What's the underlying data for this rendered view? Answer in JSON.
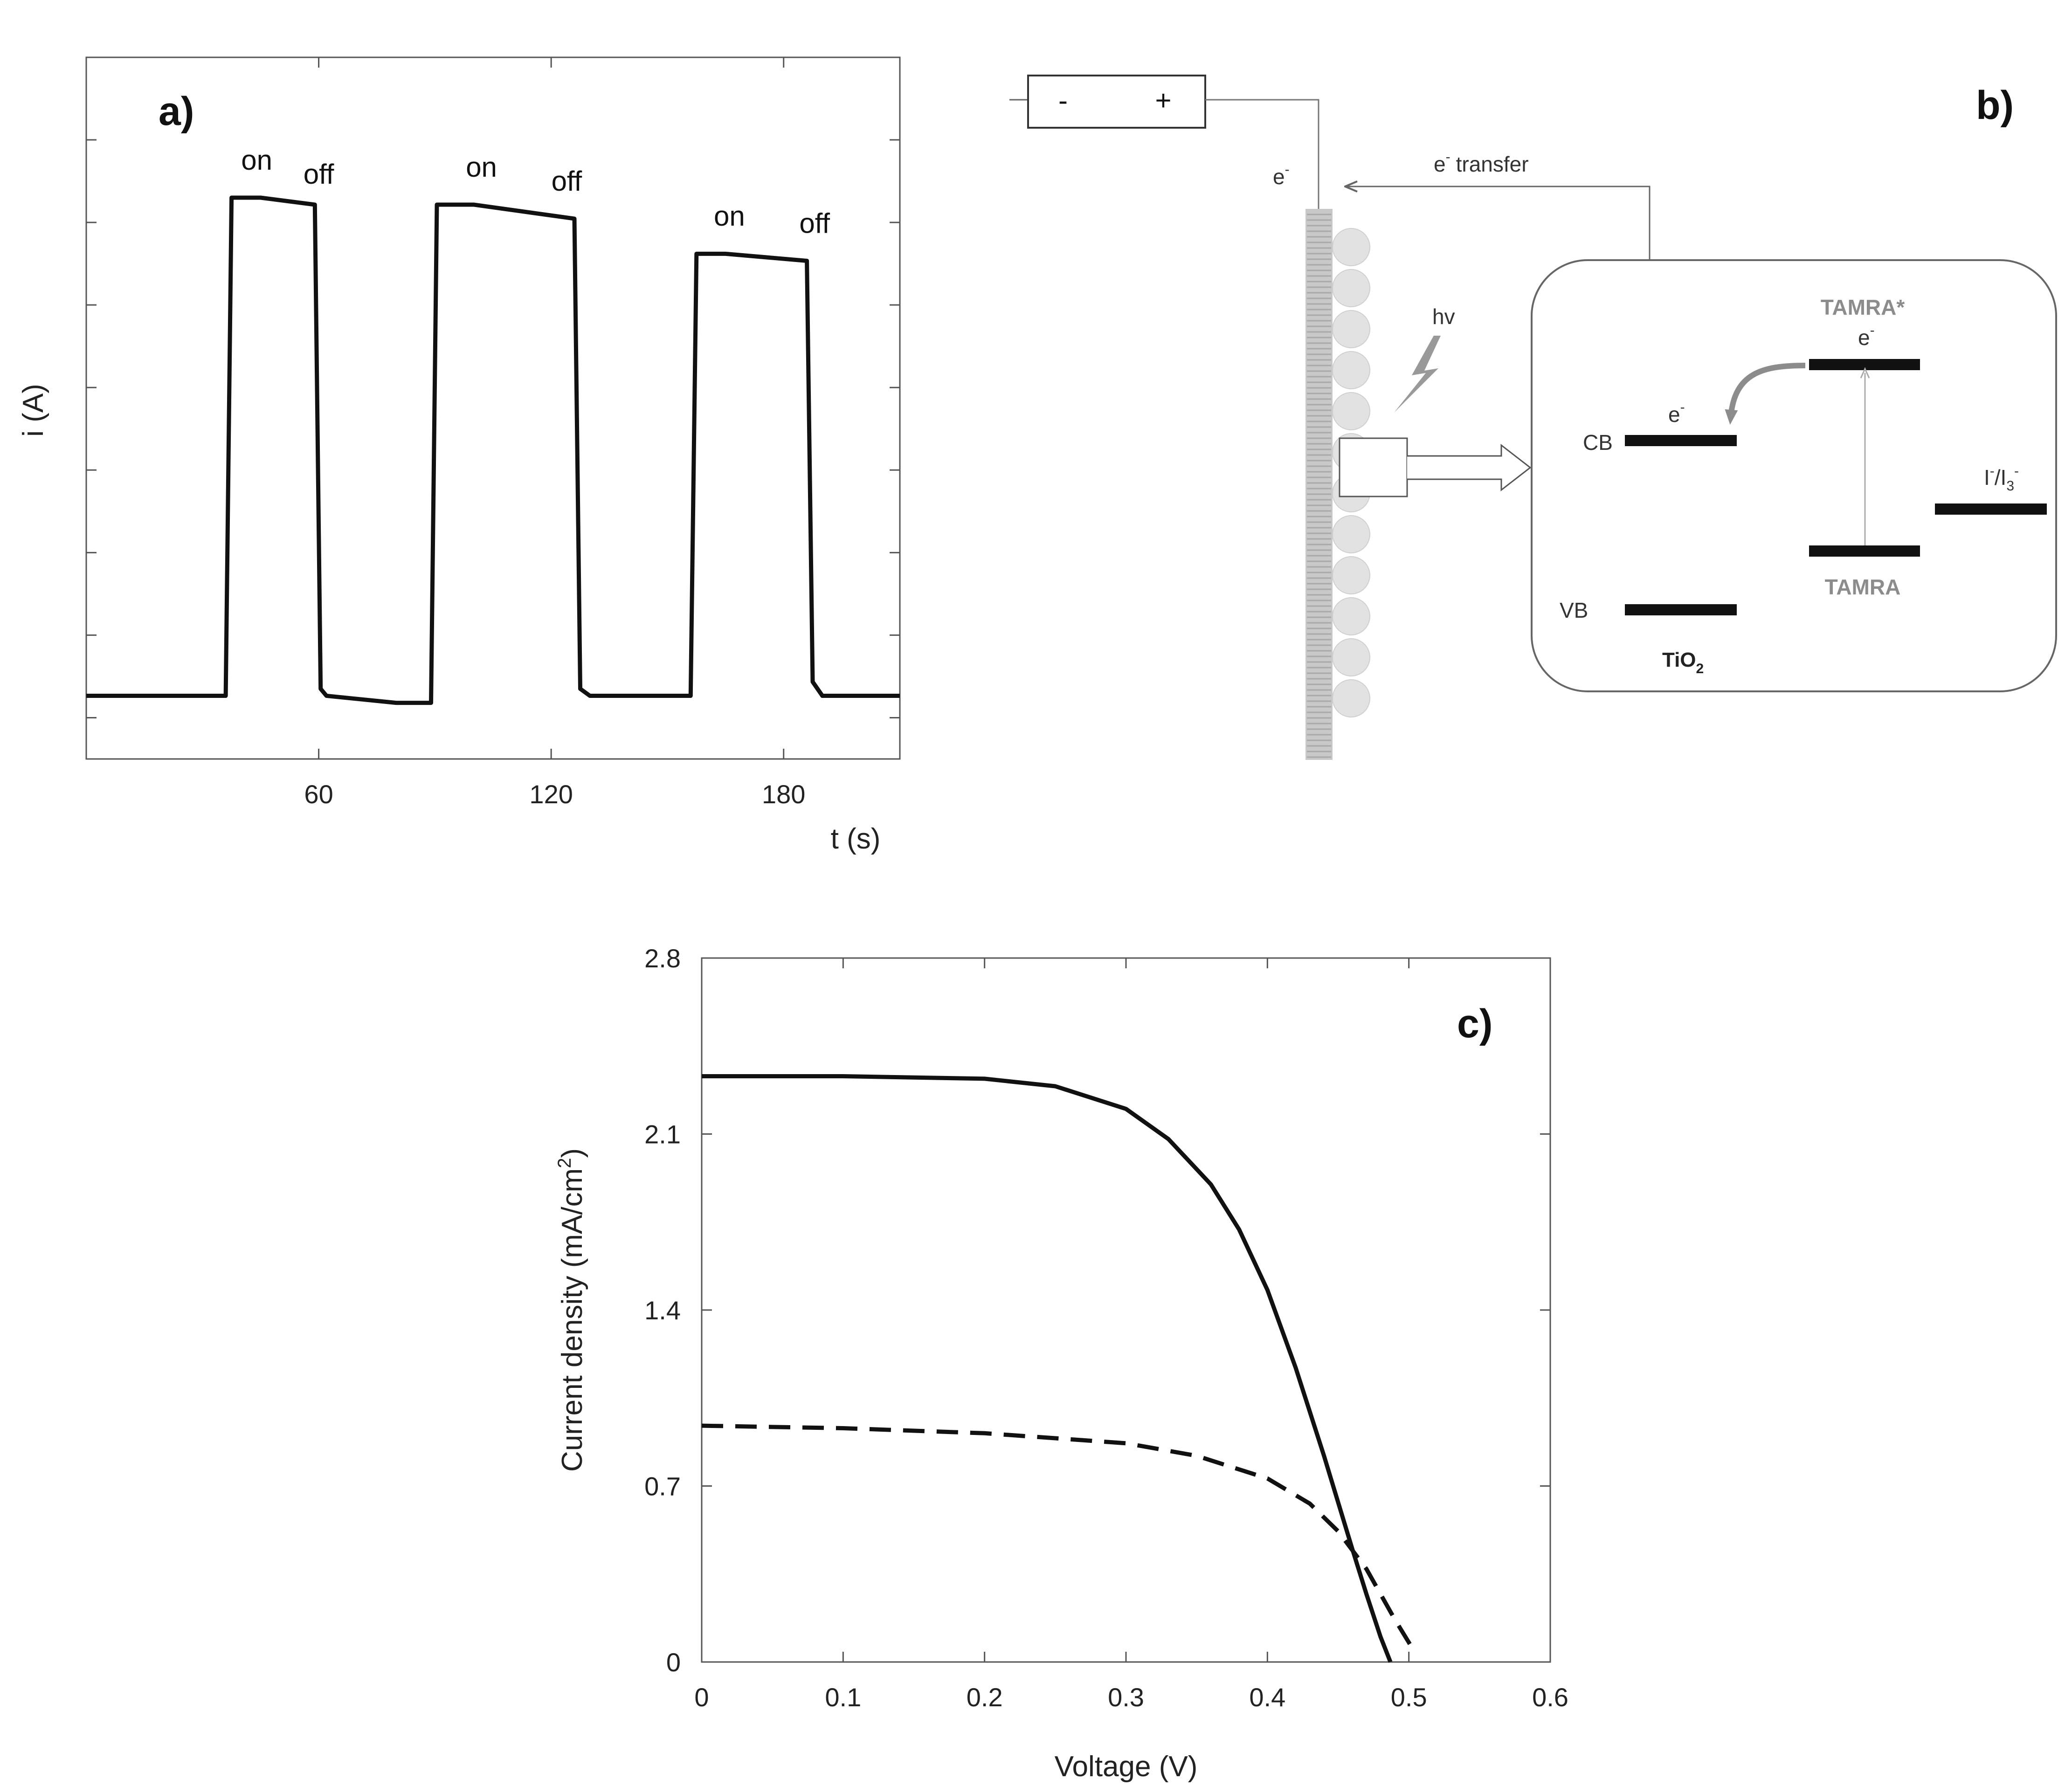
{
  "chart_data": [
    {
      "panel": "a)",
      "type": "line",
      "xlabel": "t (s)",
      "ylabel": "i (A)",
      "xlim": [
        0,
        210
      ],
      "ylim": [
        0,
        1
      ],
      "x_ticks": [
        60,
        120,
        180
      ],
      "annotations": [
        {
          "text": "on",
          "x": 44,
          "y": 0.84
        },
        {
          "text": "off",
          "x": 60,
          "y": 0.82
        },
        {
          "text": "on",
          "x": 102,
          "y": 0.83
        },
        {
          "text": "off",
          "x": 124,
          "y": 0.81
        },
        {
          "text": "on",
          "x": 166,
          "y": 0.76
        },
        {
          "text": "off",
          "x": 188,
          "y": 0.75
        }
      ],
      "series": [
        {
          "style": "solid",
          "x": [
            0,
            36,
            37.5,
            45,
            59,
            60.5,
            62,
            80,
            89,
            90.5,
            100,
            126,
            127.5,
            130,
            148,
            156,
            157.5,
            165,
            186,
            187.5,
            190,
            210
          ],
          "y": [
            0.09,
            0.09,
            0.8,
            0.8,
            0.79,
            0.1,
            0.09,
            0.08,
            0.08,
            0.79,
            0.79,
            0.77,
            0.1,
            0.09,
            0.09,
            0.09,
            0.72,
            0.72,
            0.71,
            0.11,
            0.09,
            0.09
          ]
        }
      ]
    },
    {
      "panel": "c)",
      "type": "line",
      "xlabel": "Voltage (V)",
      "ylabel_main": "Current density (mA/cm",
      "ylabel_sup": "2",
      "ylabel_close": ")",
      "xlim": [
        0,
        0.6
      ],
      "ylim": [
        0,
        2.8
      ],
      "x_ticks": [
        0,
        0.1,
        0.2,
        0.3,
        0.4,
        0.5,
        0.6
      ],
      "x_tick_labels": [
        "0",
        "0.1",
        "0.2",
        "0.3",
        "0.4",
        "0.5",
        "0.6"
      ],
      "y_ticks": [
        0,
        0.7,
        1.4,
        2.1,
        2.8
      ],
      "y_tick_labels": [
        "0",
        "0.7",
        "1.4",
        "2.1",
        "2.8"
      ],
      "series": [
        {
          "style": "solid",
          "x": [
            0,
            0.1,
            0.2,
            0.25,
            0.3,
            0.33,
            0.36,
            0.38,
            0.4,
            0.42,
            0.44,
            0.46,
            0.47,
            0.48,
            0.487
          ],
          "y": [
            2.33,
            2.33,
            2.32,
            2.29,
            2.2,
            2.08,
            1.9,
            1.72,
            1.48,
            1.17,
            0.82,
            0.45,
            0.27,
            0.1,
            0.0
          ]
        },
        {
          "style": "dashed",
          "x": [
            0,
            0.1,
            0.2,
            0.3,
            0.35,
            0.4,
            0.43,
            0.45,
            0.47,
            0.49,
            0.503
          ],
          "y": [
            0.94,
            0.93,
            0.91,
            0.87,
            0.82,
            0.73,
            0.63,
            0.52,
            0.37,
            0.17,
            0.05
          ]
        }
      ]
    }
  ],
  "diagram_b": {
    "panel": "b)",
    "battery_minus": "-",
    "battery_plus": "+",
    "electron_left": "e",
    "electron_sup": "-",
    "transfer_e": "e",
    "transfer_sup": "-",
    "transfer_text": "transfer",
    "hv": "hv",
    "cb": "CB",
    "vb": "VB",
    "tio2_main": "TiO",
    "tio2_sub": "2",
    "cb_electron": "e",
    "cb_sup": "-",
    "excited": "TAMRA*",
    "excited_e": "e",
    "excited_sup": "-",
    "ground": "TAMRA",
    "redox_i": "I",
    "redox_sup1": "-",
    "redox_slash": "/I",
    "redox_sub": "3",
    "redox_sup2": "-"
  }
}
